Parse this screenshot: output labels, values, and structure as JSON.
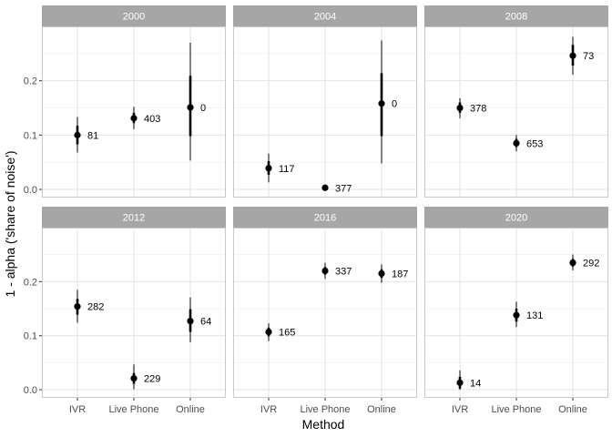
{
  "chart_data": {
    "type": "scatter",
    "subtype": "pointrange-facets",
    "xlabel": "Method",
    "ylabel": "1 - alpha ('share of noise')",
    "categories": [
      "IVR",
      "Live Phone",
      "Online"
    ],
    "y_ticks": [
      0.0,
      0.1,
      0.2
    ],
    "y_tick_labels": [
      "0.0",
      "0.1",
      "0.2"
    ],
    "ylim": [
      -0.015,
      0.3
    ],
    "grid": true,
    "facets": [
      {
        "title": "2000",
        "points": [
          {
            "method": "IVR",
            "y": 0.1,
            "inner": [
              0.083,
              0.117
            ],
            "outer": [
              0.068,
              0.133
            ],
            "n": "81"
          },
          {
            "method": "Live Phone",
            "y": 0.131,
            "inner": [
              0.122,
              0.141
            ],
            "outer": [
              0.111,
              0.152
            ],
            "n": "403"
          },
          {
            "method": "Online",
            "y": 0.151,
            "inner": [
              0.098,
              0.209
            ],
            "outer": [
              0.053,
              0.27
            ],
            "n": "0"
          }
        ]
      },
      {
        "title": "2004",
        "points": [
          {
            "method": "IVR",
            "y": 0.039,
            "inner": [
              0.027,
              0.052
            ],
            "outer": [
              0.013,
              0.066
            ],
            "n": "117"
          },
          {
            "method": "Live Phone",
            "y": 0.003,
            "inner": [
              0.001,
              0.005
            ],
            "outer": [
              0.0,
              0.007
            ],
            "n": "377"
          },
          {
            "method": "Online",
            "y": 0.158,
            "inner": [
              0.098,
              0.214
            ],
            "outer": [
              0.048,
              0.274
            ],
            "n": "0"
          }
        ]
      },
      {
        "title": "2008",
        "points": [
          {
            "method": "IVR",
            "y": 0.15,
            "inner": [
              0.141,
              0.16
            ],
            "outer": [
              0.131,
              0.168
            ],
            "n": "378"
          },
          {
            "method": "Live Phone",
            "y": 0.085,
            "inner": [
              0.078,
              0.093
            ],
            "outer": [
              0.07,
              0.1
            ],
            "n": "653"
          },
          {
            "method": "Online",
            "y": 0.246,
            "inner": [
              0.228,
              0.266
            ],
            "outer": [
              0.211,
              0.281
            ],
            "n": "73"
          }
        ]
      },
      {
        "title": "2012",
        "points": [
          {
            "method": "IVR",
            "y": 0.154,
            "inner": [
              0.139,
              0.168
            ],
            "outer": [
              0.124,
              0.185
            ],
            "n": "282"
          },
          {
            "method": "Live Phone",
            "y": 0.021,
            "inner": [
              0.011,
              0.031
            ],
            "outer": [
              0.001,
              0.047
            ],
            "n": "229"
          },
          {
            "method": "Online",
            "y": 0.127,
            "inner": [
              0.107,
              0.149
            ],
            "outer": [
              0.088,
              0.171
            ],
            "n": "64"
          }
        ]
      },
      {
        "title": "2016",
        "points": [
          {
            "method": "IVR",
            "y": 0.107,
            "inner": [
              0.099,
              0.115
            ],
            "outer": [
              0.09,
              0.123
            ],
            "n": "165"
          },
          {
            "method": "Live Phone",
            "y": 0.22,
            "inner": [
              0.213,
              0.227
            ],
            "outer": [
              0.205,
              0.235
            ],
            "n": "337"
          },
          {
            "method": "Online",
            "y": 0.215,
            "inner": [
              0.207,
              0.223
            ],
            "outer": [
              0.198,
              0.232
            ],
            "n": "187"
          }
        ]
      },
      {
        "title": "2020",
        "points": [
          {
            "method": "IVR",
            "y": 0.013,
            "inner": [
              0.002,
              0.024
            ],
            "outer": [
              0.0,
              0.036
            ],
            "n": "14"
          },
          {
            "method": "Live Phone",
            "y": 0.138,
            "inner": [
              0.126,
              0.15
            ],
            "outer": [
              0.116,
              0.163
            ],
            "n": "131"
          },
          {
            "method": "Online",
            "y": 0.235,
            "inner": [
              0.228,
              0.242
            ],
            "outer": [
              0.221,
              0.25
            ],
            "n": "292"
          }
        ]
      }
    ]
  }
}
